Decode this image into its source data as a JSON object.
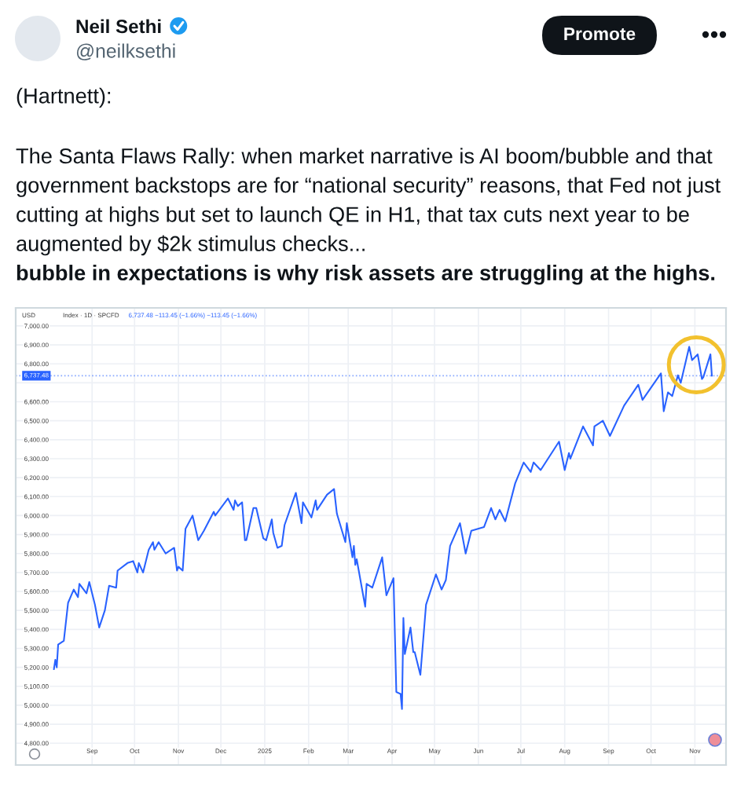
{
  "chart_data": {
    "type": "line",
    "title": "(Hartnett):",
    "subtitle": "The Santa Flaws Rally: when market narrative is AI boom/bubble and that government backstops are for “national security” reasons, that Fed not just cutting at highs but set to launch QE in H1, that tax cuts next year to be augmented by $2k stimulus checks...",
    "annotations": [
      "bubble in expectations is why risk assets are struggling at the highs.",
      "Neil Sethi",
      "@neilksethi",
      "Promote",
      "USD",
      "Index · 1D · SPCFD",
      "6,737.48 −113.45 (−1.66%) −113.45 (−1.66%)"
    ],
    "x": [
      "2024-08-05",
      "2024-08-06",
      "2024-08-07",
      "2024-08-08",
      "2024-08-12",
      "2024-08-15",
      "2024-08-19",
      "2024-08-22",
      "2024-08-23",
      "2024-08-28",
      "2024-08-30",
      "2024-09-03",
      "2024-09-06",
      "2024-09-10",
      "2024-09-13",
      "2024-09-18",
      "2024-09-19",
      "2024-09-26",
      "2024-09-30",
      "2024-10-03",
      "2024-10-04",
      "2024-10-07",
      "2024-10-11",
      "2024-10-14",
      "2024-10-15",
      "2024-10-18",
      "2024-10-23",
      "2024-10-29",
      "2024-10-31",
      "2024-11-01",
      "2024-11-04",
      "2024-11-06",
      "2024-11-11",
      "2024-11-15",
      "2024-11-19",
      "2024-11-26",
      "2024-11-27",
      "2024-12-06",
      "2024-12-10",
      "2024-12-11",
      "2024-12-13",
      "2024-12-16",
      "2024-12-18",
      "2024-12-19",
      "2024-12-24",
      "2024-12-26",
      "2024-12-31",
      "2025-01-02",
      "2025-01-06",
      "2025-01-07",
      "2025-01-10",
      "2025-01-13",
      "2025-01-15",
      "2025-01-23",
      "2025-01-27",
      "2025-01-28",
      "2025-02-03",
      "2025-02-06",
      "2025-02-07",
      "2025-02-14",
      "2025-02-19",
      "2025-02-21",
      "2025-02-27",
      "2025-02-28",
      "2025-03-04",
      "2025-03-05",
      "2025-03-06",
      "2025-03-07",
      "2025-03-13",
      "2025-03-14",
      "2025-03-18",
      "2025-03-25",
      "2025-03-28",
      "2025-04-02",
      "2025-04-04",
      "2025-04-07",
      "2025-04-08",
      "2025-04-09",
      "2025-04-10",
      "2025-04-14",
      "2025-04-16",
      "2025-04-17",
      "2025-04-21",
      "2025-04-25",
      "2025-05-02",
      "2025-05-06",
      "2025-05-09",
      "2025-05-12",
      "2025-05-19",
      "2025-05-23",
      "2025-05-27",
      "2025-06-05",
      "2025-06-10",
      "2025-06-13",
      "2025-06-16",
      "2025-06-20",
      "2025-06-27",
      "2025-07-03",
      "2025-07-08",
      "2025-07-10",
      "2025-07-15",
      "2025-07-28",
      "2025-08-01",
      "2025-08-04",
      "2025-08-05",
      "2025-08-14",
      "2025-08-21",
      "2025-08-22",
      "2025-08-28",
      "2025-09-02",
      "2025-09-12",
      "2025-09-22",
      "2025-09-25",
      "2025-10-08",
      "2025-10-10",
      "2025-10-13",
      "2025-10-16",
      "2025-10-20",
      "2025-10-22",
      "2025-10-28",
      "2025-10-30",
      "2025-11-03",
      "2025-11-06",
      "2025-11-07",
      "2025-11-12",
      "2025-11-13"
    ],
    "series": [
      {
        "color": "#2962ff",
        "values": [
          5190,
          5240,
          5200,
          5320,
          5340,
          5540,
          5610,
          5570,
          5640,
          5590,
          5650,
          5530,
          5410,
          5500,
          5630,
          5620,
          5710,
          5750,
          5760,
          5700,
          5750,
          5700,
          5820,
          5860,
          5820,
          5860,
          5800,
          5830,
          5710,
          5730,
          5710,
          5930,
          6000,
          5870,
          5920,
          6020,
          6000,
          6090,
          6030,
          6080,
          6050,
          6070,
          5870,
          5870,
          6040,
          6040,
          5880,
          5870,
          5980,
          5910,
          5830,
          5840,
          5950,
          6120,
          5960,
          6070,
          5990,
          6080,
          6030,
          6110,
          6140,
          6010,
          5860,
          5960,
          5780,
          5840,
          5740,
          5770,
          5520,
          5640,
          5620,
          5780,
          5580,
          5670,
          5070,
          5060,
          4980,
          5460,
          5270,
          5410,
          5280,
          5280,
          5160,
          5530,
          5690,
          5610,
          5660,
          5840,
          5960,
          5800,
          5920,
          5940,
          6040,
          5980,
          6030,
          5970,
          6170,
          6280,
          6230,
          6280,
          6240,
          6390,
          6240,
          6330,
          6300,
          6470,
          6370,
          6470,
          6500,
          6420,
          6580,
          6690,
          6610,
          6750,
          6550,
          6650,
          6630,
          6740,
          6700,
          6890,
          6820,
          6850,
          6720,
          6730,
          6850,
          6737.48
        ]
      }
    ],
    "xlim": [
      "2024-07-09",
      "2025-11-23"
    ],
    "ylim": [
      4685,
      7095
    ],
    "xticks": [
      {
        "value": "2024-09-01",
        "label": "Sep"
      },
      {
        "value": "2024-10-01",
        "label": "Oct"
      },
      {
        "value": "2024-11-01",
        "label": "Nov"
      },
      {
        "value": "2024-12-01",
        "label": "Dec"
      },
      {
        "value": "2025-01-01",
        "label": "2025"
      },
      {
        "value": "2025-02-01",
        "label": "Feb"
      },
      {
        "value": "2025-03-01",
        "label": "Mar"
      },
      {
        "value": "2025-04-01",
        "label": "Apr"
      },
      {
        "value": "2025-05-01",
        "label": "May"
      },
      {
        "value": "2025-06-01",
        "label": "Jun"
      },
      {
        "value": "2025-07-01",
        "label": "Jul"
      },
      {
        "value": "2025-08-01",
        "label": "Aug"
      },
      {
        "value": "2025-09-01",
        "label": "Sep"
      },
      {
        "value": "2025-10-01",
        "label": "Oct"
      },
      {
        "value": "2025-11-01",
        "label": "Nov"
      }
    ],
    "yticks": [
      {
        "value": 4800,
        "label": "4,800.00"
      },
      {
        "value": 4900,
        "label": "4,900.00"
      },
      {
        "value": 5000,
        "label": "5,000.00"
      },
      {
        "value": 5100,
        "label": "5,100.00"
      },
      {
        "value": 5200,
        "label": "5,200.00"
      },
      {
        "value": 5300,
        "label": "5,300.00"
      },
      {
        "value": 5400,
        "label": "5,400.00"
      },
      {
        "value": 5500,
        "label": "5,500.00"
      },
      {
        "value": 5600,
        "label": "5,600.00"
      },
      {
        "value": 5700,
        "label": "5,700.00"
      },
      {
        "value": 5800,
        "label": "5,800.00"
      },
      {
        "value": 5900,
        "label": "5,900.00"
      },
      {
        "value": 6000,
        "label": "6,000.00"
      },
      {
        "value": 6100,
        "label": "6,100.00"
      },
      {
        "value": 6200,
        "label": "6,200.00"
      },
      {
        "value": 6300,
        "label": "6,300.00"
      },
      {
        "value": 6400,
        "label": "6,400.00"
      },
      {
        "value": 6500,
        "label": "6,500.00"
      },
      {
        "value": 6600,
        "label": "6,600.00"
      },
      {
        "value": 6700,
        "label": null
      },
      {
        "value": 6800,
        "label": "6,800.00"
      },
      {
        "value": 6900,
        "label": "6,900.00"
      },
      {
        "value": 7000,
        "label": "7,000.00"
      }
    ],
    "grid": true,
    "ref_lines": [
      {
        "axis": "y",
        "value": 6737.48,
        "label": "6,737.48",
        "color": "#2962ff",
        "line_style": "dotted"
      }
    ]
  }
}
